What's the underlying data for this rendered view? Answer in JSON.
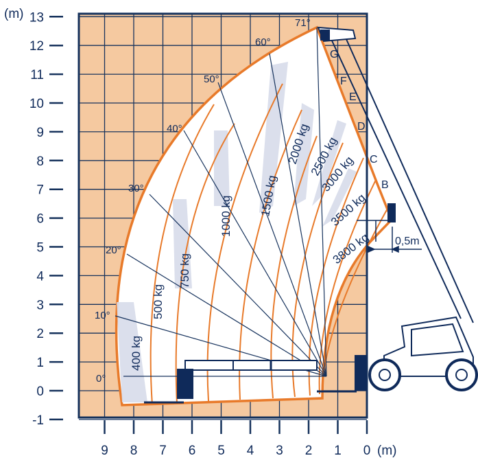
{
  "chart_data": {
    "type": "load chart",
    "y_unit": "(m)",
    "x_unit": "(m)",
    "y_ticks": [
      "-1",
      "0",
      "1",
      "2",
      "3",
      "4",
      "5",
      "6",
      "7",
      "8",
      "9",
      "10",
      "11",
      "12",
      "13"
    ],
    "x_ticks": [
      "9",
      "8",
      "7",
      "6",
      "5",
      "4",
      "3",
      "2",
      "1",
      "0"
    ],
    "boom_angles": [
      {
        "label": "0°",
        "deg": 0
      },
      {
        "label": "10°",
        "deg": 10
      },
      {
        "label": "20°",
        "deg": 20
      },
      {
        "label": "30°",
        "deg": 30
      },
      {
        "label": "40°",
        "deg": 40
      },
      {
        "label": "50°",
        "deg": 50
      },
      {
        "label": "60°",
        "deg": 60
      },
      {
        "label": "71°",
        "deg": 71
      }
    ],
    "load_labels": [
      "400 kg",
      "500 kg",
      "750 kg",
      "1000 kg",
      "1500 kg",
      "2000 kg",
      "2500 kg",
      "3000 kg",
      "3500 kg",
      "3800 kg"
    ],
    "extension_points": [
      "B",
      "C",
      "D",
      "E",
      "F",
      "G"
    ],
    "fork_offset_label": "0,5m",
    "colors": {
      "background": "#f5c9a0",
      "grid": "#16325c",
      "envelope": "#e87a2a",
      "fill": "#ffffff",
      "band": "#d7dcea",
      "text": "#0f2a5a"
    }
  }
}
